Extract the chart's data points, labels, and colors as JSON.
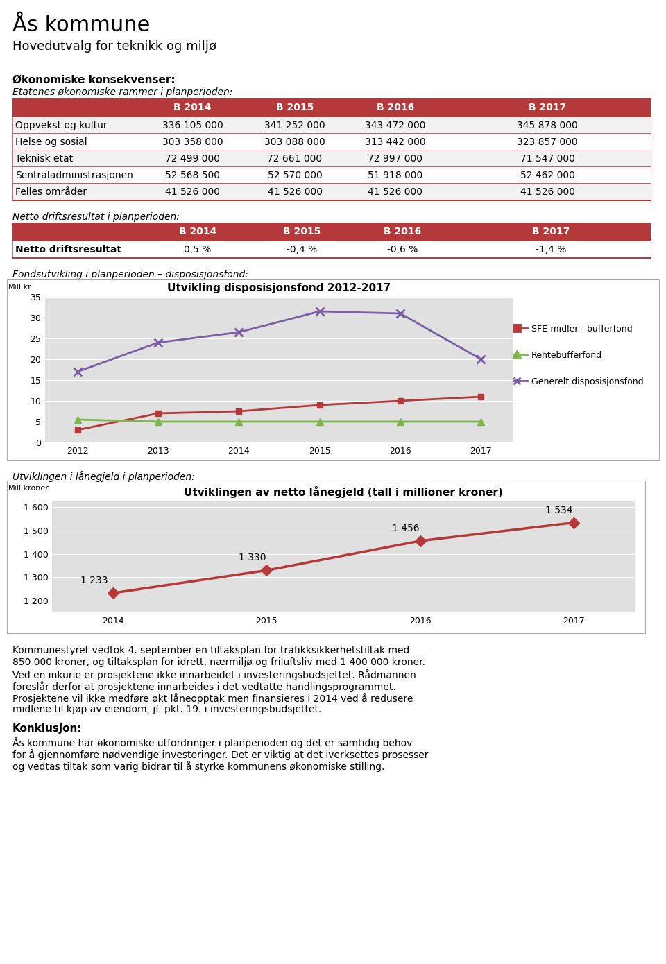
{
  "title": "Ås kommune",
  "subtitle": "Hovedutvalg for teknikk og miljø",
  "section1_header": "Økonomiske konsekvenser:",
  "section1_subheader": "Etatenes økonomiske rammer i planperioden:",
  "table1_columns": [
    "",
    "B 2014",
    "B 2015",
    "B 2016",
    "B 2017"
  ],
  "table1_rows": [
    [
      "Oppvekst og kultur",
      "336 105 000",
      "341 252 000",
      "343 472 000",
      "345 878 000"
    ],
    [
      "Helse og sosial",
      "303 358 000",
      "303 088 000",
      "313 442 000",
      "323 857 000"
    ],
    [
      "Teknisk etat",
      "72 499 000",
      "72 661 000",
      "72 997 000",
      "71 547 000"
    ],
    [
      "Sentraladministrasjonen",
      "52 568 500",
      "52 570 000",
      "51 918 000",
      "52 462 000"
    ],
    [
      "Felles områder",
      "41 526 000",
      "41 526 000",
      "41 526 000",
      "41 526 000"
    ]
  ],
  "section2_header": "Netto driftsresultat i planperioden:",
  "table2_columns": [
    "",
    "B 2014",
    "B 2015",
    "B 2016",
    "B 2017"
  ],
  "table2_rows": [
    [
      "Netto driftsresultat",
      "0,5 %",
      "-0,4 %",
      "-0,6 %",
      "-1,4 %"
    ]
  ],
  "section3_header": "Fondsutvikling i planperioden – disposisjonsfond:",
  "chart1_title": "Utvikling disposisjonsfond 2012-2017",
  "chart1_ylabel": "Mill.kr.",
  "chart1_years": [
    2012,
    2013,
    2014,
    2015,
    2016,
    2017
  ],
  "chart1_sfe": [
    3.0,
    7.0,
    7.5,
    9.0,
    10.0,
    11.0
  ],
  "chart1_rente": [
    5.5,
    5.0,
    5.0,
    5.0,
    5.0,
    5.0
  ],
  "chart1_generelt": [
    17.0,
    24.0,
    26.5,
    31.5,
    31.0,
    20.0
  ],
  "chart1_ylim": [
    0,
    35
  ],
  "chart1_yticks": [
    0,
    5,
    10,
    15,
    20,
    25,
    30,
    35
  ],
  "chart1_sfe_color": "#b5393a",
  "chart1_rente_color": "#7ab648",
  "chart1_generelt_color": "#7b5ea7",
  "section4_header": "Utviklingen i lånegjeld i planperioden:",
  "chart2_title": "Utviklingen av netto lånegjeld (tall i millioner kroner)",
  "chart2_ylabel": "Mill.kroner",
  "chart2_years": [
    2014,
    2015,
    2016,
    2017
  ],
  "chart2_values": [
    1233,
    1330,
    1456,
    1534
  ],
  "chart2_labels": [
    "1 233",
    "1 330",
    "1 456",
    "1 534"
  ],
  "chart2_ylim": [
    1150,
    1625
  ],
  "chart2_yticks": [
    1200,
    1300,
    1400,
    1500,
    1600
  ],
  "chart2_ytick_labels": [
    "1 200",
    "1 300",
    "1 400",
    "1 500",
    "1 600"
  ],
  "chart2_color": "#b5393a",
  "para1": "Kommunestyret vedtok 4. september en tiltaksplan for trafikksikkerhetstiltak med\n850 000 kroner, og tiltaksplan for idrett, nærmiljø og friluftsliv med 1 400 000 kroner.\nVed en inkurie er prosjektene ikke innarbeidet i investeringsbudsjettet. Rådmannen\nforeslår derfor at prosjektene innarbeides i det vedtatte handlingsprogrammet.\nProsjektene vil ikke medføre økt låneopptak men finansieres i 2014 ved å redusere\nmidlene til kjøp av eiendom, jf. pkt. 19. i investeringsbudsjettet.",
  "conclusion_header": "Konklusjon:",
  "conclusion_text": "Ås kommune har økonomiske utfordringer i planperioden og det er samtidig behov\nfor å gjennomføre nødvendige investeringer. Det er viktig at det iverksettes prosesser\nog vedtas tiltak som varig bidrar til å styrke kommunens økonomiske stilling.",
  "header_bg_color": "#b5393a",
  "header_text_color": "#ffffff",
  "row_bg_even": "#f2f2f2",
  "row_bg_odd": "#ffffff",
  "border_color": "#b5393a",
  "chart_bg_color": "#e0e0e0",
  "FIG_W": 960,
  "FIG_H": 1390
}
